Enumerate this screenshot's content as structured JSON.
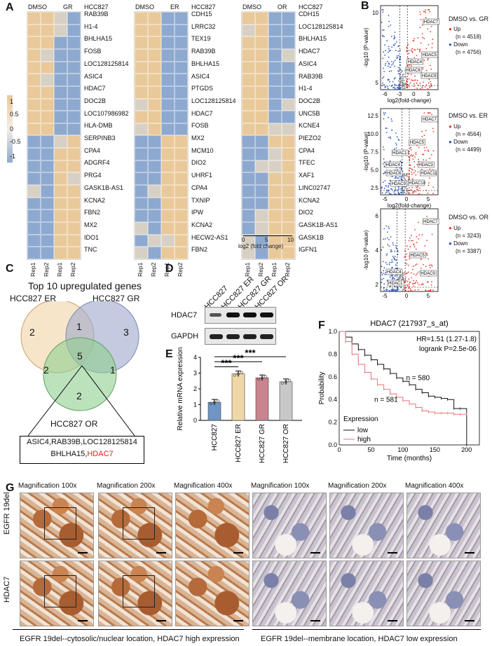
{
  "panels": {
    "A": "A",
    "B": "B",
    "C": "C",
    "D": "D",
    "E": "E",
    "F": "F",
    "G": "G"
  },
  "heatmaps": [
    {
      "col1": "DMSO",
      "col2": "GR",
      "genes_header": "HCC827",
      "genes": [
        "RAB39B",
        "H1-4",
        "BHLHA15",
        "FOSB",
        "LOC128125814",
        "ASIC4",
        "HDAC7",
        "DOC2B",
        "LOC107986982",
        "HLA-DMB",
        "SERPINB3",
        "CPA4",
        "ADGRF4",
        "PRG4",
        "GASK1B-AS1",
        "KCNA2",
        "FBN2",
        "MX2",
        "IDO1",
        "TNC"
      ]
    },
    {
      "col1": "DMSO",
      "col2": "ER",
      "genes_header": "HCC827",
      "genes": [
        "CDH15",
        "LRRC32",
        "TEX19",
        "RAB39B",
        "BHLHA15",
        "ASIC4",
        "PTGDS",
        "LOC128125814",
        "HDAC7",
        "FOSB",
        "MX2",
        "MCM10",
        "DIO2",
        "UHRF1",
        "CPA4",
        "TXNIP",
        "IPW",
        "KCNA2",
        "HECW2-AS1",
        "FBN2"
      ]
    },
    {
      "col1": "DMSO",
      "col2": "OR",
      "genes_header": "HCC827",
      "genes": [
        "CDH15",
        "LOC128125814",
        "BHLHA15",
        "HDAC7",
        "ASIC4",
        "RAB39B",
        "H1-4",
        "DOC2B",
        "UNC5B",
        "KCNE4",
        "PIEZO2",
        "CPA4",
        "TFEC",
        "XAF1",
        "LINC02747",
        "KCNA2",
        "DIO2",
        "GASK1B-AS1",
        "GASK1B",
        "IGFN1"
      ]
    }
  ],
  "rep_labels": [
    "Rep1",
    "Rep2",
    "Rep1",
    "Rep2"
  ],
  "color_scale": {
    "ticks": [
      "1",
      "0.5",
      "0",
      "-0.5",
      "-1"
    ],
    "high": "#e9c99a",
    "low": "#8ea9cf"
  },
  "heat_xaxis": {
    "label": "log2 (fold change)",
    "ticks": [
      "0",
      "5",
      "10"
    ]
  },
  "volcanos": [
    {
      "title": "DMSO vs. GR",
      "up": "Up",
      "up_n": "(n = 4518)",
      "down": "Down",
      "down_n": "(n = 4756)",
      "yticks": [
        "10",
        "5"
      ],
      "xticks": [
        "-6",
        "-3",
        "0",
        "3"
      ],
      "labels": [
        "HDAC7",
        "HDAC5",
        "HDAC4",
        "HDAC6",
        "HDAC9"
      ]
    },
    {
      "title": "DMSO vs. ER",
      "up": "Up",
      "up_n": "(n = 4564)",
      "down": "Down",
      "down_n": "(n = 4499)",
      "yticks": [
        "12.5",
        "10.0",
        "7.5",
        "5.0",
        "2.5"
      ],
      "xticks": [
        "-5",
        "0",
        "5"
      ],
      "labels": [
        "HDAC7",
        "HDAC5",
        "HDAC1",
        "HDAC4",
        "HDAC3",
        "HDAC6",
        "HDAC11",
        "HDAC9",
        "HDAC10"
      ]
    },
    {
      "title": "DMSO vs. OR",
      "up": "Up",
      "up_n": "(n = 3243)",
      "down": "Down",
      "down_n": "(n = 3387)",
      "yticks": [
        "6",
        "4",
        "2"
      ],
      "xticks": [
        "-5",
        "0",
        "5"
      ],
      "labels": [
        "HDAC7",
        "HDAC5",
        "HDAC4",
        "HDAC9",
        "HDAC1"
      ]
    }
  ],
  "volcano_axis": {
    "y": "-log10 (P-value)",
    "x": "log2(fold-change)"
  },
  "venn": {
    "title": "Top 10 upregulated genes",
    "setA": "HCC827 ER",
    "setB": "HCC827 GR",
    "setC": "HCC827 OR",
    "n_a": "2",
    "n_ab": "1",
    "n_b": "3",
    "n_ac": "2",
    "n_abc": "5",
    "n_bc": "1",
    "n_c": "2",
    "shared_line1": "ASIC4,RAB39B,LOC128125814",
    "shared_line2a": "BHLHA15,",
    "shared_line2b": "HDAC7"
  },
  "western": {
    "lanes": [
      "HCC827",
      "HCC827 ER",
      "HCC827 GR",
      "HCC827 OR"
    ],
    "rows": [
      "HDAC7",
      "GAPDH"
    ]
  },
  "bar": {
    "ylabel": "Relative mRNA expression",
    "yticks": [
      "0",
      "1",
      "2",
      "3",
      "4"
    ],
    "sig": [
      "***",
      "***",
      "***"
    ],
    "categories": [
      "HCC827",
      "HCC827 ER",
      "HCC827 GR",
      "HCC827 OR"
    ]
  },
  "km": {
    "title": "HDAC7 (217937_s_at)",
    "hr": "HR=1.51 (1.27-1.8)",
    "p": "logrank P=2.5e-06",
    "n_low": "n = 580",
    "n_high": "n = 581",
    "legend_title": "Expression",
    "legend_low": "low",
    "legend_high": "high",
    "ylabel": "Probability",
    "xlabel": "Time (months)",
    "yticks": [
      "1.0",
      "0.8",
      "0.6",
      "0.4",
      "0.2",
      "0.0"
    ],
    "xticks": [
      "0",
      "50",
      "100",
      "150",
      "200"
    ]
  },
  "ihc": {
    "mags": [
      "Magnification 100x",
      "Magnification 200x",
      "Magnification 400x",
      "Magnification 100x",
      "Magnification 200x",
      "Magnification 400x"
    ],
    "rows": [
      "EGFR 19del",
      "HDAC7"
    ],
    "caption_left": "EGFR 19del--cytosolic/nuclear location, HDAC7 high expression",
    "caption_right": "EGFR 19del--membrane location, HDAC7 low expression"
  },
  "chart_data": [
    {
      "type": "bar",
      "title": "",
      "xlabel": "",
      "ylabel": "Relative mRNA expression",
      "ylim": [
        0,
        4
      ],
      "categories": [
        "HCC827",
        "HCC827 ER",
        "HCC827 GR",
        "HCC827 OR"
      ],
      "values": [
        1.15,
        2.95,
        2.7,
        2.45
      ]
    },
    {
      "type": "line",
      "title": "HDAC7 (217937_s_at)",
      "xlabel": "Time (months)",
      "ylabel": "Probability",
      "xlim": [
        0,
        220
      ],
      "ylim": [
        0,
        1
      ],
      "series": [
        {
          "name": "low",
          "x": [
            0,
            10,
            20,
            30,
            40,
            50,
            60,
            70,
            80,
            90,
            100,
            110,
            120,
            130,
            140,
            150,
            160,
            170,
            180,
            190,
            200
          ],
          "y": [
            1.0,
            0.95,
            0.89,
            0.84,
            0.79,
            0.75,
            0.71,
            0.67,
            0.63,
            0.59,
            0.56,
            0.53,
            0.49,
            0.46,
            0.43,
            0.42,
            0.41,
            0.4,
            0.32,
            0.32,
            0.0
          ]
        },
        {
          "name": "high",
          "x": [
            0,
            10,
            20,
            30,
            40,
            50,
            60,
            70,
            80,
            90,
            100,
            110,
            120,
            130,
            140,
            150,
            160,
            170,
            180,
            190,
            200
          ],
          "y": [
            1.0,
            0.91,
            0.8,
            0.71,
            0.64,
            0.58,
            0.53,
            0.49,
            0.45,
            0.42,
            0.39,
            0.36,
            0.33,
            0.3,
            0.29,
            0.28,
            0.28,
            0.28,
            0.27,
            0.27,
            0.27
          ]
        }
      ]
    }
  ]
}
